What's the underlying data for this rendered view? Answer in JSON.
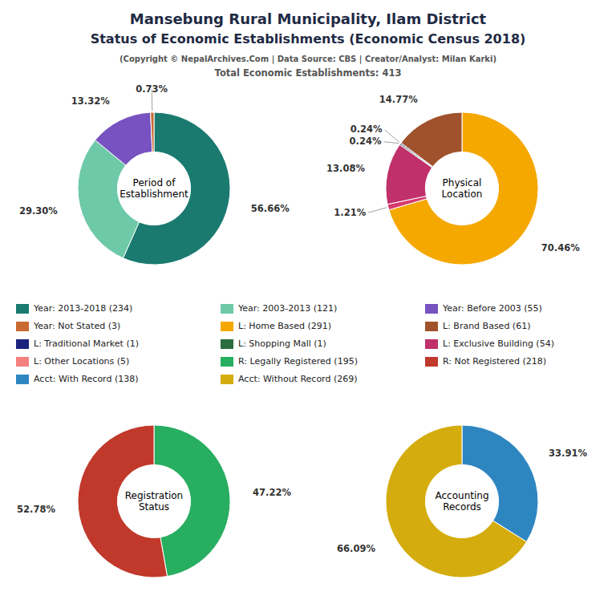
{
  "title": "Mansebung Rural Municipality, Ilam District",
  "subtitle": "Status of Economic Establishments (Economic Census 2018)",
  "annotations": [
    "(Copyright © NepalArchives.Com | Data Source: CBS | Creator/Analyst: Milan Karki)",
    "Total Economic Establishments: 413"
  ],
  "legend_entries": [
    {
      "label": "Year: 2013-2018 (234)",
      "color": "#1a7a70"
    },
    {
      "label": "Year: 2003-2013 (121)",
      "color": "#6ec9a8"
    },
    {
      "label": "Year: Before 2003 (55)",
      "color": "#7752c0"
    },
    {
      "label": "Year: Not Stated (3)",
      "color": "#c96a30"
    },
    {
      "label": "L: Home Based (291)",
      "color": "#f5a800"
    },
    {
      "label": "L: Brand Based (61)",
      "color": "#a0522d"
    },
    {
      "label": "L: Traditional Market (1)",
      "color": "#1a237e"
    },
    {
      "label": "L: Shopping Mall (1)",
      "color": "#2d6e3e"
    },
    {
      "label": "L: Exclusive Building (54)",
      "color": "#c0306a"
    },
    {
      "label": "L: Other Locations (5)",
      "color": "#f48080"
    },
    {
      "label": "R: Legally Registered (195)",
      "color": "#27ae60"
    },
    {
      "label": "R: Not Registered (218)",
      "color": "#c0392b"
    },
    {
      "label": "Acct: With Record (138)",
      "color": "#2e86c1"
    },
    {
      "label": "Acct: Without Record (269)",
      "color": "#d4ac0d"
    }
  ],
  "chart_data": [
    {
      "type": "donut",
      "title": "Period of\nEstablishment",
      "values": [
        56.66,
        29.3,
        13.32,
        0.73
      ],
      "colors": [
        "#1a7a70",
        "#6ec9a8",
        "#7752c0",
        "#c96a30"
      ],
      "value_labels": [
        "56.66%",
        "29.30%",
        "13.32%",
        "0.73%"
      ],
      "data_labels": true
    },
    {
      "type": "donut",
      "title": "Physical\nLocation",
      "values": [
        70.46,
        1.21,
        13.08,
        0.24,
        0.24,
        14.77
      ],
      "colors": [
        "#f5a800",
        "#d63b6e",
        "#c0306a",
        "#003000",
        "#000060",
        "#a0522d"
      ],
      "value_labels": [
        "70.46%",
        "1.21%",
        "13.08%",
        "0.24%",
        "0.24%",
        "14.77%"
      ],
      "data_labels": true
    },
    {
      "type": "donut",
      "title": "Registration\nStatus",
      "values": [
        47.22,
        52.78
      ],
      "colors": [
        "#27ae60",
        "#c0392b"
      ],
      "value_labels": [
        "47.22%",
        "52.78%"
      ],
      "data_labels": true
    },
    {
      "type": "donut",
      "title": "Accounting\nRecords",
      "values": [
        33.91,
        66.09
      ],
      "colors": [
        "#2e86c1",
        "#d4ac0d"
      ],
      "value_labels": [
        "33.91%",
        "66.09%"
      ],
      "data_labels": true
    }
  ]
}
